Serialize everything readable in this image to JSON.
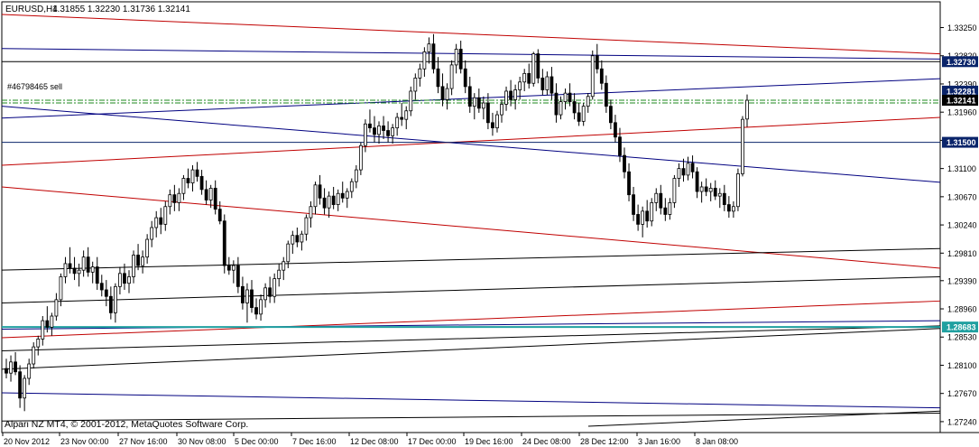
{
  "chart": {
    "symbol_title": "EURUSD,H4",
    "ohlc": "1.31855 1.32230 1.31736 1.32141",
    "order_label": "#46798465 sell",
    "copyright": "Alpari NZ MT4, © 2001-2012, MetaQuotes Software Corp."
  },
  "chart_data": {
    "type": "candlestick",
    "y_range": [
      1.2717,
      1.3345
    ],
    "y_ticks": [
      {
        "value": 1.3325,
        "label": "1.33250"
      },
      {
        "value": 1.3282,
        "label": "1.32820"
      },
      {
        "value": 1.3239,
        "label": "1.32390"
      },
      {
        "value": 1.3196,
        "label": "1.31960"
      },
      {
        "value": 1.3153,
        "label": "1.31530"
      },
      {
        "value": 1.311,
        "label": "1.31100"
      },
      {
        "value": 1.3067,
        "label": "1.30670"
      },
      {
        "value": 1.3024,
        "label": "1.30240"
      },
      {
        "value": 1.2981,
        "label": "1.29810"
      },
      {
        "value": 1.2939,
        "label": "1.29390"
      },
      {
        "value": 1.2896,
        "label": "1.28960"
      },
      {
        "value": 1.2853,
        "label": "1.28530"
      },
      {
        "value": 1.281,
        "label": "1.28100"
      },
      {
        "value": 1.2767,
        "label": "1.27670"
      },
      {
        "value": 1.2724,
        "label": "1.27240"
      }
    ],
    "x_labels": [
      "20 Nov 2012",
      "23 Nov 00:00",
      "27 Nov 16:00",
      "30 Nov 08:00",
      "5 Dec 00:00",
      "7 Dec 16:00",
      "12 Dec 08:00",
      "17 Dec 00:00",
      "19 Dec 16:00",
      "24 Dec 08:00",
      "28 Dec 12:00",
      "3 Jan 16:00",
      "8 Jan 08:00"
    ],
    "price_tags": [
      {
        "value": 1.3273,
        "label": "1.32730",
        "color": "#0a246a"
      },
      {
        "value": 1.32281,
        "label": "1.32281",
        "color": "#0a246a"
      },
      {
        "value": 1.32141,
        "label": "1.32141",
        "color": "#000000"
      },
      {
        "value": 1.315,
        "label": "1.31500",
        "color": "#0a246a"
      },
      {
        "value": 1.28683,
        "label": "1.28683",
        "color": "#20a0a0"
      }
    ],
    "horizontal_lines": [
      {
        "value": 1.3273,
        "color": "#000000"
      },
      {
        "value": 1.315,
        "color": "#0a246a"
      },
      {
        "value": 1.28683,
        "color": "#20a0a0"
      }
    ],
    "order_lines": [
      {
        "value": 1.32141,
        "color": "#1d8a1d"
      },
      {
        "value": 1.321,
        "color": "#1d8a1d"
      }
    ],
    "trend_lines": [
      {
        "from": [
          0,
          1.3345
        ],
        "to": [
          1040,
          1.3285
        ],
        "color": "#c00000"
      },
      {
        "from": [
          0,
          1.3293
        ],
        "to": [
          1040,
          1.3277
        ],
        "color": "#000080"
      },
      {
        "from": [
          0,
          1.3187
        ],
        "to": [
          1040,
          1.3247
        ],
        "color": "#000080"
      },
      {
        "from": [
          0,
          1.3205
        ],
        "to": [
          1040,
          1.3089
        ],
        "color": "#000080"
      },
      {
        "from": [
          0,
          1.3115
        ],
        "to": [
          1040,
          1.3188
        ],
        "color": "#c00000"
      },
      {
        "from": [
          0,
          1.3082
        ],
        "to": [
          1040,
          1.2958
        ],
        "color": "#c00000"
      },
      {
        "from": [
          0,
          1.2955
        ],
        "to": [
          1040,
          1.2988
        ],
        "color": "#000000"
      },
      {
        "from": [
          0,
          1.2905
        ],
        "to": [
          1040,
          1.2945
        ],
        "color": "#000000"
      },
      {
        "from": [
          0,
          1.2852
        ],
        "to": [
          1040,
          1.2908
        ],
        "color": "#c00000"
      },
      {
        "from": [
          0,
          1.2865
        ],
        "to": [
          1040,
          1.2878
        ],
        "color": "#000080"
      },
      {
        "from": [
          0,
          1.2832
        ],
        "to": [
          1040,
          1.287
        ],
        "color": "#000000"
      },
      {
        "from": [
          0,
          1.2804
        ],
        "to": [
          1040,
          1.2866
        ],
        "color": "#000000"
      },
      {
        "from": [
          0,
          1.2768
        ],
        "to": [
          1040,
          1.2745
        ],
        "color": "#000080"
      },
      {
        "from": [
          0,
          1.2725
        ],
        "to": [
          1040,
          1.2737
        ],
        "color": "#000000"
      },
      {
        "from": [
          650,
          1.2717
        ],
        "to": [
          1040,
          1.274
        ],
        "color": "#000000"
      }
    ],
    "candles": [
      [
        1.2805,
        1.282,
        1.279,
        1.2798
      ],
      [
        1.2798,
        1.2825,
        1.2785,
        1.2815
      ],
      [
        1.2815,
        1.283,
        1.2795,
        1.28
      ],
      [
        1.28,
        1.281,
        1.2745,
        1.276
      ],
      [
        1.276,
        1.2795,
        1.274,
        1.279
      ],
      [
        1.279,
        1.282,
        1.278,
        1.2812
      ],
      [
        1.2812,
        1.2845,
        1.2805,
        1.2838
      ],
      [
        1.2838,
        1.2855,
        1.2825,
        1.285
      ],
      [
        1.285,
        1.2885,
        1.284,
        1.2878
      ],
      [
        1.2878,
        1.29,
        1.286,
        1.2868
      ],
      [
        1.2868,
        1.289,
        1.2855,
        1.2885
      ],
      [
        1.2885,
        1.292,
        1.2878,
        1.291
      ],
      [
        1.291,
        1.295,
        1.29,
        1.2945
      ],
      [
        1.2945,
        1.2975,
        1.2935,
        1.2965
      ],
      [
        1.2965,
        1.299,
        1.295,
        1.2958
      ],
      [
        1.2958,
        1.2975,
        1.294,
        1.295
      ],
      [
        1.295,
        1.2965,
        1.293,
        1.2955
      ],
      [
        1.2955,
        1.2985,
        1.2945,
        1.2975
      ],
      [
        1.2975,
        1.299,
        1.2945,
        1.2952
      ],
      [
        1.2952,
        1.2968,
        1.2935,
        1.296
      ],
      [
        1.296,
        1.2975,
        1.2925,
        1.2935
      ],
      [
        1.2935,
        1.2948,
        1.2915,
        1.2925
      ],
      [
        1.2925,
        1.294,
        1.29,
        1.2915
      ],
      [
        1.2915,
        1.293,
        1.288,
        1.289
      ],
      [
        1.289,
        1.2935,
        1.2875,
        1.293
      ],
      [
        1.293,
        1.296,
        1.2918,
        1.295
      ],
      [
        1.295,
        1.2965,
        1.2925,
        1.2935
      ],
      [
        1.2935,
        1.2955,
        1.292,
        1.2945
      ],
      [
        1.2945,
        1.2985,
        1.2935,
        1.2978
      ],
      [
        1.2978,
        1.2995,
        1.2955,
        1.2962
      ],
      [
        1.2962,
        1.2985,
        1.295,
        1.2975
      ],
      [
        1.2975,
        1.301,
        1.2965,
        1.3002
      ],
      [
        1.3002,
        1.303,
        1.299,
        1.302
      ],
      [
        1.302,
        1.3045,
        1.3005,
        1.3035
      ],
      [
        1.3035,
        1.305,
        1.301,
        1.3025
      ],
      [
        1.3025,
        1.306,
        1.3015,
        1.3052
      ],
      [
        1.3052,
        1.3078,
        1.304,
        1.307
      ],
      [
        1.307,
        1.3085,
        1.3045,
        1.3058
      ],
      [
        1.3058,
        1.308,
        1.3045,
        1.3072
      ],
      [
        1.3072,
        1.31,
        1.3062,
        1.3095
      ],
      [
        1.3095,
        1.311,
        1.308,
        1.3088
      ],
      [
        1.3088,
        1.3115,
        1.3075,
        1.3108
      ],
      [
        1.3108,
        1.312,
        1.309,
        1.3098
      ],
      [
        1.3098,
        1.3108,
        1.307,
        1.3078
      ],
      [
        1.3078,
        1.3092,
        1.3055,
        1.3062
      ],
      [
        1.3062,
        1.3085,
        1.305,
        1.308
      ],
      [
        1.308,
        1.3092,
        1.304,
        1.3048
      ],
      [
        1.3048,
        1.306,
        1.3025,
        1.303
      ],
      [
        1.303,
        1.304,
        1.295,
        1.2962
      ],
      [
        1.2962,
        1.2975,
        1.2948,
        1.2955
      ],
      [
        1.2955,
        1.297,
        1.2935,
        1.2962
      ],
      [
        1.2962,
        1.2975,
        1.292,
        1.293
      ],
      [
        1.293,
        1.2945,
        1.2895,
        1.2905
      ],
      [
        1.2905,
        1.2935,
        1.2875,
        1.2925
      ],
      [
        1.2925,
        1.294,
        1.289,
        1.2898
      ],
      [
        1.2898,
        1.2912,
        1.288,
        1.2888
      ],
      [
        1.2888,
        1.2918,
        1.2878,
        1.291
      ],
      [
        1.291,
        1.2935,
        1.2898,
        1.2928
      ],
      [
        1.2928,
        1.2945,
        1.2905,
        1.2915
      ],
      [
        1.2915,
        1.295,
        1.2905,
        1.2942
      ],
      [
        1.2942,
        1.2965,
        1.293,
        1.2955
      ],
      [
        1.2955,
        1.2975,
        1.294,
        1.2968
      ],
      [
        1.2968,
        1.3,
        1.2958,
        1.2995
      ],
      [
        1.2995,
        1.3015,
        1.298,
        1.3008
      ],
      [
        1.3008,
        1.302,
        1.299,
        1.2998
      ],
      [
        1.2998,
        1.3015,
        1.2985,
        1.301
      ],
      [
        1.301,
        1.304,
        1.3,
        1.3035
      ],
      [
        1.3035,
        1.306,
        1.302,
        1.3052
      ],
      [
        1.3052,
        1.309,
        1.304,
        1.3085
      ],
      [
        1.3085,
        1.31,
        1.3055,
        1.3065
      ],
      [
        1.3065,
        1.308,
        1.304,
        1.305
      ],
      [
        1.305,
        1.3075,
        1.3035,
        1.3068
      ],
      [
        1.3068,
        1.3082,
        1.3048,
        1.3055
      ],
      [
        1.3055,
        1.3078,
        1.3045,
        1.3072
      ],
      [
        1.3072,
        1.309,
        1.3058,
        1.3065
      ],
      [
        1.3065,
        1.308,
        1.305,
        1.3075
      ],
      [
        1.3075,
        1.3095,
        1.3065,
        1.309
      ],
      [
        1.309,
        1.3115,
        1.308,
        1.3108
      ],
      [
        1.3108,
        1.315,
        1.31,
        1.3145
      ],
      [
        1.3145,
        1.3185,
        1.3135,
        1.3178
      ],
      [
        1.3178,
        1.32,
        1.3165,
        1.3172
      ],
      [
        1.3172,
        1.319,
        1.315,
        1.3162
      ],
      [
        1.3162,
        1.3182,
        1.3148,
        1.3175
      ],
      [
        1.3175,
        1.319,
        1.3155,
        1.3168
      ],
      [
        1.3168,
        1.3182,
        1.315,
        1.316
      ],
      [
        1.316,
        1.3178,
        1.3148,
        1.3172
      ],
      [
        1.3172,
        1.3195,
        1.316,
        1.3188
      ],
      [
        1.3188,
        1.321,
        1.3175,
        1.3185
      ],
      [
        1.3185,
        1.3205,
        1.317,
        1.3198
      ],
      [
        1.3198,
        1.3235,
        1.319,
        1.3228
      ],
      [
        1.3228,
        1.3255,
        1.3215,
        1.3248
      ],
      [
        1.3248,
        1.327,
        1.3235,
        1.3262
      ],
      [
        1.3262,
        1.3295,
        1.325,
        1.3288
      ],
      [
        1.3288,
        1.331,
        1.327,
        1.33
      ],
      [
        1.33,
        1.3315,
        1.3255,
        1.3262
      ],
      [
        1.3262,
        1.328,
        1.3225,
        1.3235
      ],
      [
        1.3235,
        1.3255,
        1.3205,
        1.3215
      ],
      [
        1.3215,
        1.324,
        1.32,
        1.3232
      ],
      [
        1.3232,
        1.3275,
        1.3222,
        1.3268
      ],
      [
        1.3268,
        1.33,
        1.3255,
        1.3292
      ],
      [
        1.3292,
        1.3305,
        1.3255,
        1.3262
      ],
      [
        1.3262,
        1.3275,
        1.3225,
        1.3235
      ],
      [
        1.3235,
        1.325,
        1.3195,
        1.3205
      ],
      [
        1.3205,
        1.3225,
        1.3185,
        1.3218
      ],
      [
        1.3218,
        1.3232,
        1.3195,
        1.3202
      ],
      [
        1.3202,
        1.322,
        1.3185,
        1.321
      ],
      [
        1.321,
        1.3225,
        1.317,
        1.318
      ],
      [
        1.318,
        1.3195,
        1.316,
        1.3172
      ],
      [
        1.3172,
        1.3198,
        1.3165,
        1.3192
      ],
      [
        1.3192,
        1.3215,
        1.318,
        1.3208
      ],
      [
        1.3208,
        1.3235,
        1.3198,
        1.3228
      ],
      [
        1.3228,
        1.3245,
        1.3205,
        1.3215
      ],
      [
        1.3215,
        1.3238,
        1.32,
        1.323
      ],
      [
        1.323,
        1.325,
        1.3215,
        1.3242
      ],
      [
        1.3242,
        1.3262,
        1.3228,
        1.3255
      ],
      [
        1.3255,
        1.327,
        1.3232,
        1.324
      ],
      [
        1.324,
        1.3288,
        1.3235,
        1.3285
      ],
      [
        1.3285,
        1.3292,
        1.324,
        1.3248
      ],
      [
        1.3248,
        1.3262,
        1.3222,
        1.323
      ],
      [
        1.323,
        1.3258,
        1.3222,
        1.325
      ],
      [
        1.325,
        1.3265,
        1.3215,
        1.3225
      ],
      [
        1.3225,
        1.324,
        1.318,
        1.3192
      ],
      [
        1.3192,
        1.322,
        1.3185,
        1.3212
      ],
      [
        1.3212,
        1.3232,
        1.32,
        1.3225
      ],
      [
        1.3225,
        1.324,
        1.3205,
        1.3212
      ],
      [
        1.3212,
        1.3225,
        1.3185,
        1.3195
      ],
      [
        1.3195,
        1.321,
        1.3175,
        1.3182
      ],
      [
        1.3182,
        1.321,
        1.3175,
        1.3205
      ],
      [
        1.3205,
        1.3225,
        1.3195,
        1.322
      ],
      [
        1.322,
        1.329,
        1.3215,
        1.3282
      ],
      [
        1.3282,
        1.33,
        1.3255,
        1.3262
      ],
      [
        1.3262,
        1.3275,
        1.323,
        1.324
      ],
      [
        1.324,
        1.3252,
        1.3195,
        1.3205
      ],
      [
        1.3205,
        1.3215,
        1.317,
        1.318
      ],
      [
        1.318,
        1.3192,
        1.315,
        1.3158
      ],
      [
        1.3158,
        1.3172,
        1.312,
        1.313
      ],
      [
        1.313,
        1.3142,
        1.3095,
        1.3105
      ],
      [
        1.3105,
        1.3118,
        1.306,
        1.307
      ],
      [
        1.307,
        1.3082,
        1.303,
        1.304
      ],
      [
        1.304,
        1.3055,
        1.3015,
        1.3025
      ],
      [
        1.3025,
        1.3052,
        1.3005,
        1.3045
      ],
      [
        1.3045,
        1.3062,
        1.302,
        1.303
      ],
      [
        1.303,
        1.3065,
        1.3022,
        1.3058
      ],
      [
        1.3058,
        1.308,
        1.3045,
        1.3072
      ],
      [
        1.3072,
        1.3085,
        1.304,
        1.305
      ],
      [
        1.305,
        1.3065,
        1.303,
        1.304
      ],
      [
        1.304,
        1.3065,
        1.3032,
        1.3058
      ],
      [
        1.3058,
        1.31,
        1.305,
        1.3095
      ],
      [
        1.3095,
        1.3118,
        1.3082,
        1.311
      ],
      [
        1.311,
        1.3125,
        1.309,
        1.31
      ],
      [
        1.31,
        1.3128,
        1.3092,
        1.3118
      ],
      [
        1.3118,
        1.313,
        1.3095,
        1.3105
      ],
      [
        1.3105,
        1.3112,
        1.3065,
        1.3075
      ],
      [
        1.3075,
        1.309,
        1.3058,
        1.3082
      ],
      [
        1.3082,
        1.3095,
        1.3068,
        1.3075
      ],
      [
        1.3075,
        1.3088,
        1.306,
        1.308
      ],
      [
        1.308,
        1.3092,
        1.3062,
        1.3068
      ],
      [
        1.3068,
        1.308,
        1.305,
        1.3072
      ],
      [
        1.3072,
        1.3085,
        1.3045,
        1.3055
      ],
      [
        1.3055,
        1.3068,
        1.3035,
        1.3045
      ],
      [
        1.3045,
        1.306,
        1.3035,
        1.3052
      ],
      [
        1.3052,
        1.311,
        1.3045,
        1.3102
      ],
      [
        1.3102,
        1.319,
        1.3098,
        1.3185
      ],
      [
        1.31855,
        1.3223,
        1.31736,
        1.32141
      ]
    ]
  }
}
